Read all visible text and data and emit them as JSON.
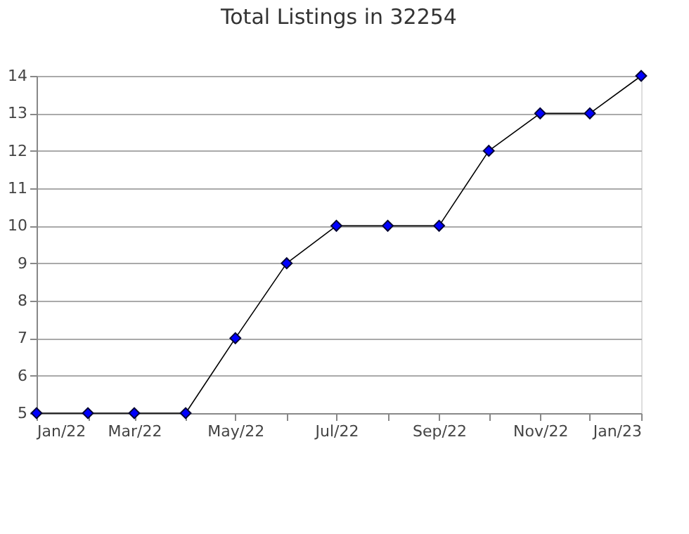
{
  "chart_data": {
    "type": "line",
    "title": "Total Listings in 32254",
    "x": [
      "2022-01",
      "2022-02",
      "2022-03",
      "2022-04",
      "2022-05",
      "2022-06",
      "2022-07",
      "2022-08",
      "2022-09",
      "2022-10",
      "2022-11",
      "2022-12",
      "2023-01"
    ],
    "series": [
      {
        "color": "#000000",
        "colors": [
          "#0000ff",
          "#0000ff",
          "#0000ff",
          "#0000ff",
          "#0000ff",
          "#0000ff",
          "#0000ff",
          "#0000ff",
          "#0000ff",
          "#0000ff",
          "#0000ff",
          "#0000ff",
          "#0000ff"
        ],
        "values": [
          5,
          5,
          5,
          5,
          7,
          9,
          10,
          10,
          10,
          12,
          13,
          13,
          14
        ]
      }
    ],
    "xlim": [
      "2022-01",
      "2023-01"
    ],
    "xticks": [
      {
        "value": "2022-01",
        "label": "Jan/22"
      },
      {
        "value": "2022-02",
        "label": null
      },
      {
        "value": "2022-03",
        "label": "Mar/22"
      },
      {
        "value": "2022-04",
        "label": null
      },
      {
        "value": "2022-05",
        "label": "May/22"
      },
      {
        "value": "2022-06",
        "label": null
      },
      {
        "value": "2022-07",
        "label": "Jul/22"
      },
      {
        "value": "2022-08",
        "label": null
      },
      {
        "value": "2022-09",
        "label": "Sep/22"
      },
      {
        "value": "2022-10",
        "label": null
      },
      {
        "value": "2022-11",
        "label": "Nov/22"
      },
      {
        "value": "2022-12",
        "label": null
      },
      {
        "value": "2023-01",
        "label": "Jan/23"
      }
    ],
    "ylim": [
      5,
      14
    ],
    "yticks": [
      5,
      6,
      7,
      8,
      9,
      10,
      11,
      12,
      13,
      14
    ],
    "grid": "y",
    "marker": "diamond",
    "line_style": "solid",
    "legend": false
  }
}
